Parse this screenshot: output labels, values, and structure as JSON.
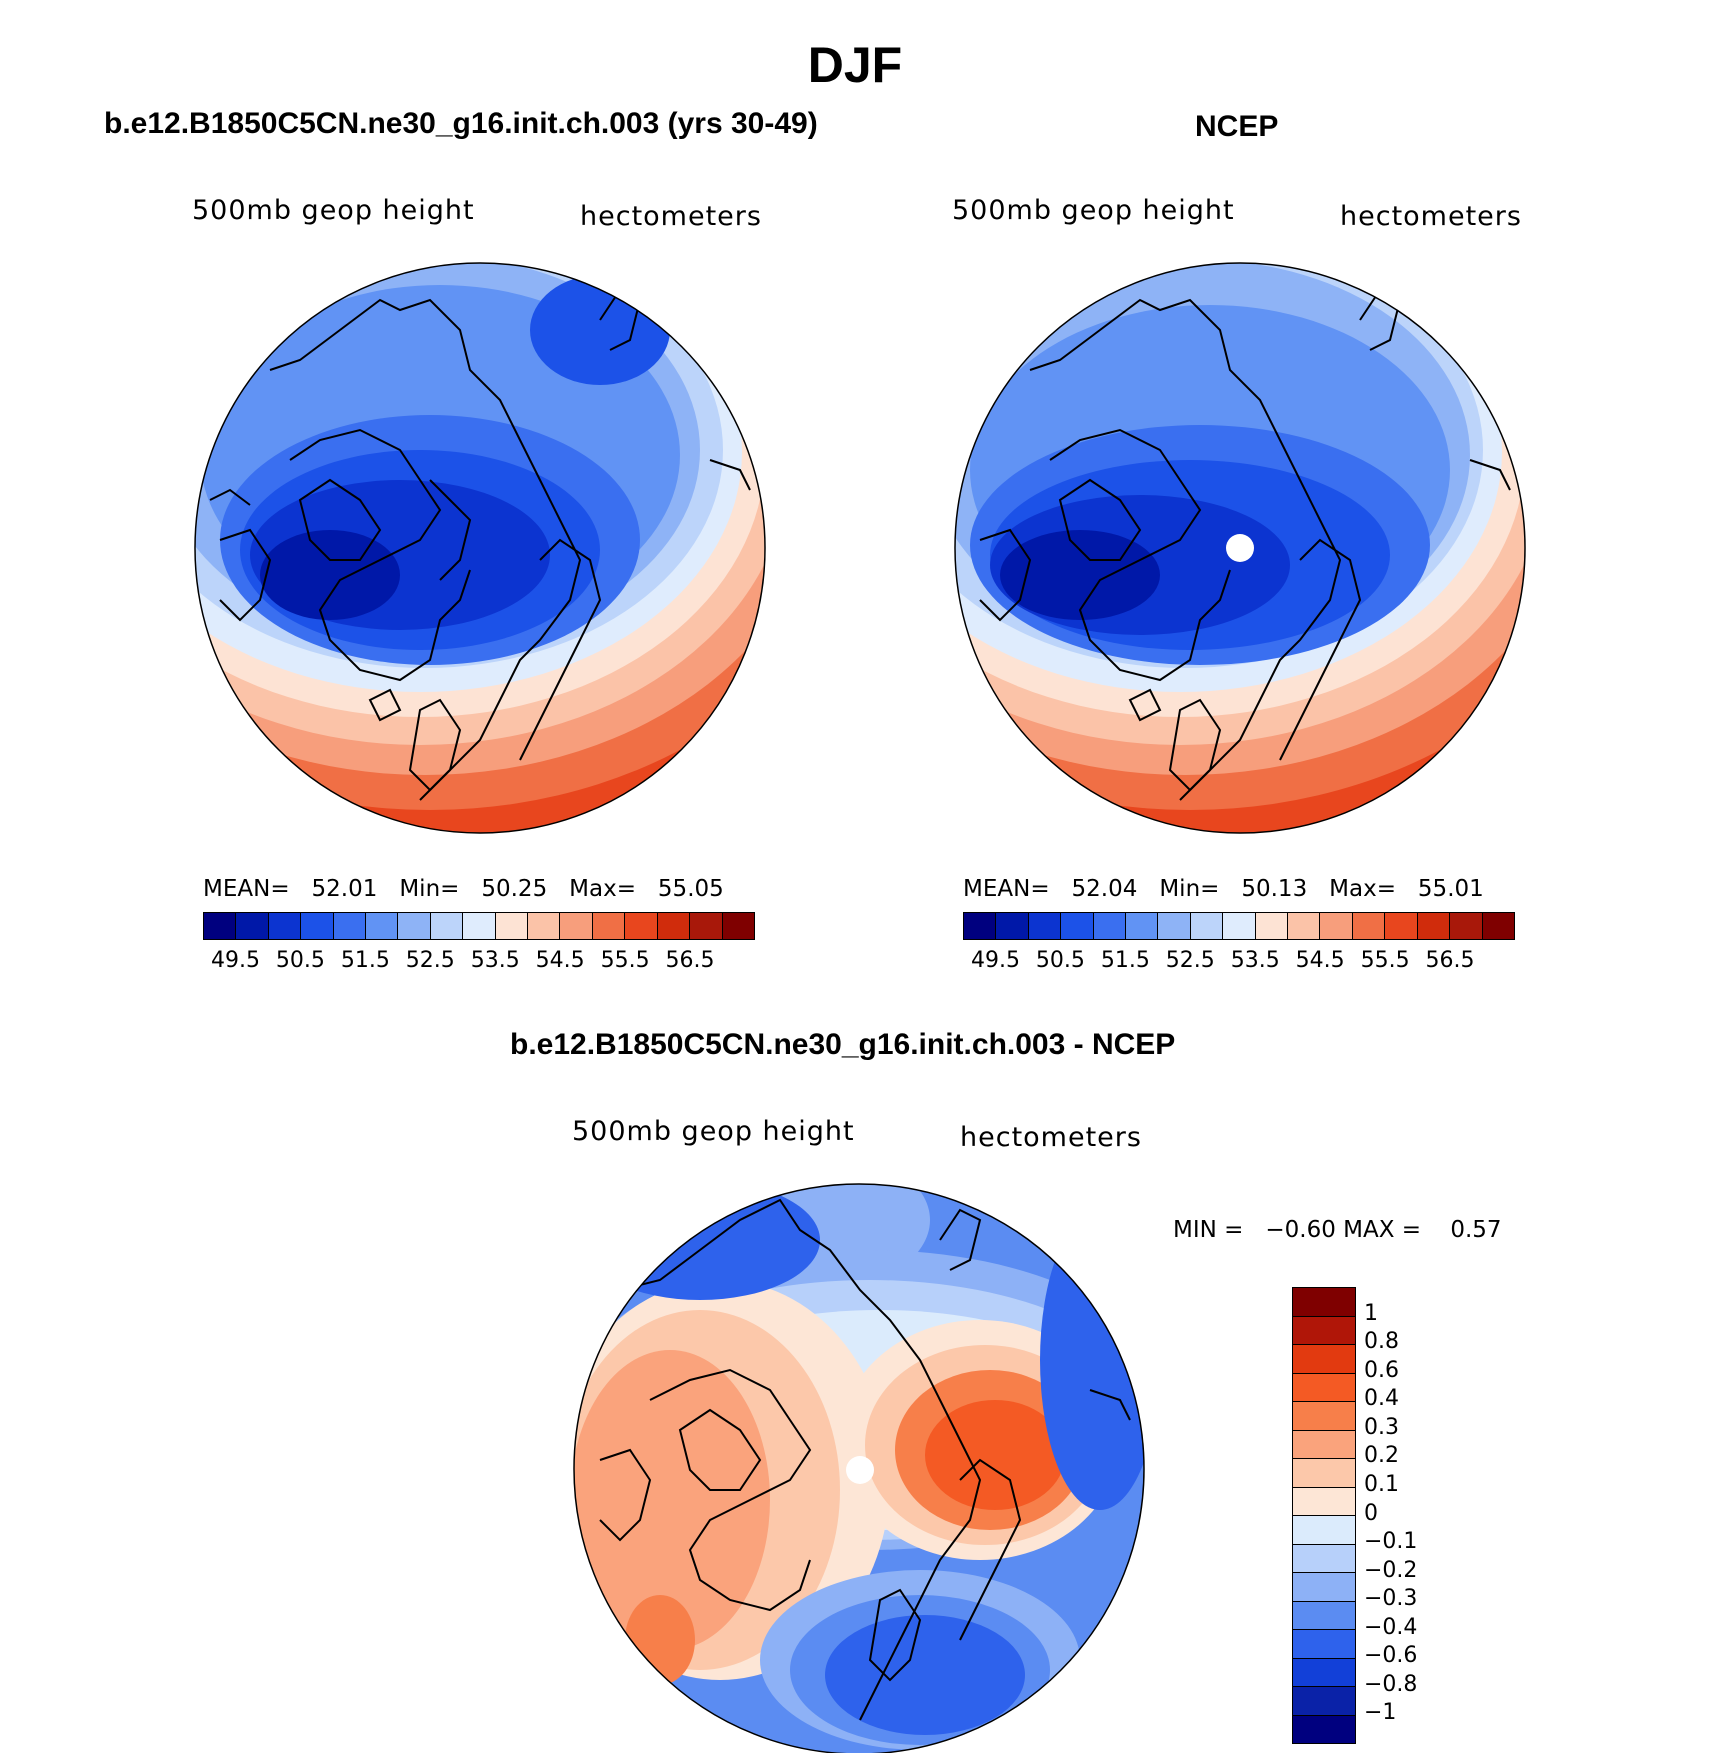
{
  "figure_title": "DJF",
  "panels": [
    {
      "title": "b.e12.B1850C5CN.ne30_g16.init.ch.003 (yrs 30-49)",
      "variable": "500mb geop height",
      "units": "hectometers",
      "stats": {
        "mean_label": "MEAN=",
        "mean": "52.01",
        "min_label": "Min=",
        "min": "50.25",
        "max_label": "Max=",
        "max": "55.05"
      }
    },
    {
      "title": "NCEP",
      "variable": "500mb geop height",
      "units": "hectometers",
      "stats": {
        "mean_label": "MEAN=",
        "mean": "52.04",
        "min_label": "Min=",
        "min": "50.13",
        "max_label": "Max=",
        "max": "55.01"
      }
    },
    {
      "title": "b.e12.B1850C5CN.ne30_g16.init.ch.003 - NCEP",
      "variable": "500mb geop height",
      "units": "hectometers",
      "stats": {
        "min_label": "MIN =",
        "min": "−0.60",
        "max_label": "MAX =",
        "max": "0.57"
      }
    }
  ],
  "horizontal_colorbar": {
    "ticks": [
      "49.5",
      "50.5",
      "51.5",
      "52.5",
      "53.5",
      "54.5",
      "55.5",
      "56.5"
    ],
    "colors": [
      "#00007f",
      "#0018a8",
      "#0c34d0",
      "#1c52e8",
      "#3a6ff0",
      "#6193f4",
      "#8eb3f6",
      "#bcd4fa",
      "#dfecfd",
      "#fde3d4",
      "#fbc3a8",
      "#f79e7c",
      "#f06f45",
      "#e8461e",
      "#d02c0c",
      "#a8180a",
      "#7f0000"
    ]
  },
  "vertical_colorbar": {
    "ticks": [
      "1",
      "0.8",
      "0.6",
      "0.4",
      "0.3",
      "0.2",
      "0.1",
      "0",
      "−0.1",
      "−0.2",
      "−0.3",
      "−0.4",
      "−0.6",
      "−0.8",
      "−1"
    ],
    "colors": [
      "#7f0000",
      "#b01608",
      "#e23a10",
      "#f45a24",
      "#f77f4a",
      "#faa37c",
      "#fcc8aa",
      "#fde6d6",
      "#dbebfc",
      "#b7d0fa",
      "#8db1f6",
      "#5b8cf2",
      "#2e62ec",
      "#1240d8",
      "#0a22a8",
      "#00007f"
    ]
  }
}
